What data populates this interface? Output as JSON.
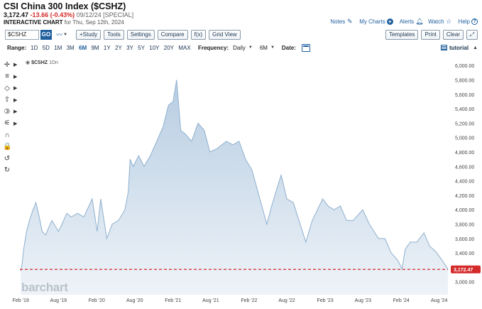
{
  "header": {
    "title": "CSI China 300 Index ($CSHZ)",
    "last": "3,172.47",
    "change": "-13.66 (-0.43%)",
    "meta": "09/12/24 [SPECIAL]",
    "subtitle_bold": "INTERACTIVE CHART",
    "subtitle_rest": "for Thu, Sep 12th, 2024"
  },
  "top_links": {
    "notes": "Notes",
    "my_charts": "My Charts",
    "alerts": "Alerts",
    "watch": "Watch",
    "help": "Help"
  },
  "toolbar": {
    "symbol_value": "$CSHZ",
    "go": "GO",
    "study": "+Study",
    "tools": "Tools",
    "settings": "Settings",
    "compare": "Compare",
    "fx": "f(x)",
    "grid_view": "Grid View",
    "templates": "Templates",
    "print": "Print",
    "clear": "Clear"
  },
  "range_bar": {
    "label": "Range:",
    "ranges": [
      "1D",
      "5D",
      "1M",
      "3M",
      "6M",
      "9M",
      "1Y",
      "2Y",
      "3Y",
      "5Y",
      "10Y",
      "20Y",
      "MAX"
    ],
    "active_range": "6M",
    "frequency_label": "Frequency:",
    "frequency_value": "Daily",
    "period_value": "6M",
    "date_label": "Date:",
    "tutorial": "tutorial"
  },
  "left_tools": [
    {
      "name": "crosshair-tool",
      "glyph": "✛"
    },
    {
      "name": "fibonacci-tool",
      "glyph": "≡"
    },
    {
      "name": "shape-tool",
      "glyph": "◇"
    },
    {
      "name": "arrow-tool",
      "glyph": "⇧"
    },
    {
      "name": "number-tool",
      "glyph": "③"
    },
    {
      "name": "pattern-tool",
      "glyph": "⚟"
    },
    {
      "name": "magnet-tool",
      "glyph": "∩"
    },
    {
      "name": "lock-tool",
      "glyph": "🔒"
    },
    {
      "name": "undo-tool",
      "glyph": "↺"
    },
    {
      "name": "redo-tool",
      "glyph": "↻"
    }
  ],
  "legend": {
    "symbol": "$CSHZ",
    "interval": "1Dn"
  },
  "watermark": "barchart",
  "colors": {
    "accent": "#1f5f9e",
    "line": "#8fb0cf",
    "fill_top": "#b7cde2",
    "fill_bottom": "#eef3f8",
    "last_price_line": "#d42a2a",
    "negative": "#d42a2a"
  },
  "chart_data": {
    "type": "area",
    "title": "",
    "series": [
      {
        "name": "$CSHZ",
        "points": [
          [
            "2019-02-01",
            3150
          ],
          [
            "2019-02-08",
            3250
          ],
          [
            "2019-02-15",
            3450
          ],
          [
            "2019-03-01",
            3700
          ],
          [
            "2019-03-15",
            3850
          ],
          [
            "2019-04-01",
            4000
          ],
          [
            "2019-04-15",
            4100
          ],
          [
            "2019-05-01",
            3900
          ],
          [
            "2019-05-15",
            3700
          ],
          [
            "2019-06-01",
            3650
          ],
          [
            "2019-06-15",
            3750
          ],
          [
            "2019-07-01",
            3850
          ],
          [
            "2019-08-01",
            3700
          ],
          [
            "2019-08-15",
            3780
          ],
          [
            "2019-09-10",
            3950
          ],
          [
            "2019-10-01",
            3900
          ],
          [
            "2019-11-01",
            3950
          ],
          [
            "2019-12-01",
            3900
          ],
          [
            "2020-01-10",
            4150
          ],
          [
            "2020-02-03",
            3700
          ],
          [
            "2020-02-20",
            4150
          ],
          [
            "2020-03-20",
            3600
          ],
          [
            "2020-04-15",
            3800
          ],
          [
            "2020-05-15",
            3850
          ],
          [
            "2020-06-15",
            4000
          ],
          [
            "2020-07-01",
            4250
          ],
          [
            "2020-07-10",
            4700
          ],
          [
            "2020-07-25",
            4600
          ],
          [
            "2020-08-20",
            4750
          ],
          [
            "2020-09-15",
            4600
          ],
          [
            "2020-10-15",
            4750
          ],
          [
            "2020-11-15",
            4950
          ],
          [
            "2020-12-15",
            5150
          ],
          [
            "2021-01-10",
            5450
          ],
          [
            "2021-02-01",
            5500
          ],
          [
            "2021-02-18",
            5800
          ],
          [
            "2021-03-10",
            5100
          ],
          [
            "2021-04-01",
            5050
          ],
          [
            "2021-05-01",
            4950
          ],
          [
            "2021-06-01",
            5200
          ],
          [
            "2021-07-01",
            5100
          ],
          [
            "2021-07-28",
            4800
          ],
          [
            "2021-09-01",
            4850
          ],
          [
            "2021-10-15",
            4950
          ],
          [
            "2021-11-15",
            4900
          ],
          [
            "2021-12-15",
            4950
          ],
          [
            "2022-01-15",
            4700
          ],
          [
            "2022-02-15",
            4550
          ],
          [
            "2022-03-15",
            4250
          ],
          [
            "2022-04-27",
            3800
          ],
          [
            "2022-05-20",
            4050
          ],
          [
            "2022-06-15",
            4300
          ],
          [
            "2022-07-05",
            4480
          ],
          [
            "2022-08-01",
            4150
          ],
          [
            "2022-09-01",
            4100
          ],
          [
            "2022-10-31",
            3550
          ],
          [
            "2022-12-01",
            3850
          ],
          [
            "2023-01-20",
            4150
          ],
          [
            "2023-02-15",
            4050
          ],
          [
            "2023-03-15",
            4000
          ],
          [
            "2023-04-15",
            4050
          ],
          [
            "2023-05-15",
            3850
          ],
          [
            "2023-06-15",
            3850
          ],
          [
            "2023-07-31",
            4000
          ],
          [
            "2023-09-01",
            3800
          ],
          [
            "2023-10-15",
            3600
          ],
          [
            "2023-11-15",
            3600
          ],
          [
            "2023-12-15",
            3400
          ],
          [
            "2024-01-15",
            3300
          ],
          [
            "2024-02-05",
            3180
          ],
          [
            "2024-02-20",
            3450
          ],
          [
            "2024-03-15",
            3550
          ],
          [
            "2024-04-15",
            3550
          ],
          [
            "2024-05-20",
            3680
          ],
          [
            "2024-06-15",
            3500
          ],
          [
            "2024-07-15",
            3420
          ],
          [
            "2024-08-15",
            3300
          ],
          [
            "2024-09-12",
            3172.47
          ]
        ]
      }
    ],
    "last_value": 3172.47,
    "last_value_label": "3,172.47",
    "xlim": [
      "2019-01-28",
      "2024-09-12"
    ],
    "ylim": [
      2820,
      6120
    ],
    "x_ticks": [
      {
        "date": "2019-02-01",
        "label": "Feb '19"
      },
      {
        "date": "2019-08-01",
        "label": "Aug '19"
      },
      {
        "date": "2020-02-01",
        "label": "Feb '20"
      },
      {
        "date": "2020-08-01",
        "label": "Aug '20"
      },
      {
        "date": "2021-02-01",
        "label": "Feb '21"
      },
      {
        "date": "2021-08-01",
        "label": "Aug '21"
      },
      {
        "date": "2022-02-01",
        "label": "Feb '22"
      },
      {
        "date": "2022-08-01",
        "label": "Aug '22"
      },
      {
        "date": "2023-02-01",
        "label": "Feb '23"
      },
      {
        "date": "2023-08-01",
        "label": "Aug '23"
      },
      {
        "date": "2024-02-01",
        "label": "Feb '24"
      },
      {
        "date": "2024-08-01",
        "label": "Aug '24"
      }
    ],
    "y_ticks": [
      {
        "value": 6000,
        "label": "6,000.00"
      },
      {
        "value": 5800,
        "label": "5,800.00"
      },
      {
        "value": 5600,
        "label": "5,600.00"
      },
      {
        "value": 5400,
        "label": "5,400.00"
      },
      {
        "value": 5200,
        "label": "5,200.00"
      },
      {
        "value": 5000,
        "label": "5,000.00"
      },
      {
        "value": 4800,
        "label": "4,800.00"
      },
      {
        "value": 4600,
        "label": "4,600.00"
      },
      {
        "value": 4400,
        "label": "4,400.00"
      },
      {
        "value": 4200,
        "label": "4,200.00"
      },
      {
        "value": 4000,
        "label": "4,000.00"
      },
      {
        "value": 3800,
        "label": "3,800.00"
      },
      {
        "value": 3600,
        "label": "3,600.00"
      },
      {
        "value": 3400,
        "label": "3,400.00"
      },
      {
        "value": 3000,
        "label": "3,000.00"
      }
    ],
    "grid": false,
    "legend_position": "top-left"
  }
}
